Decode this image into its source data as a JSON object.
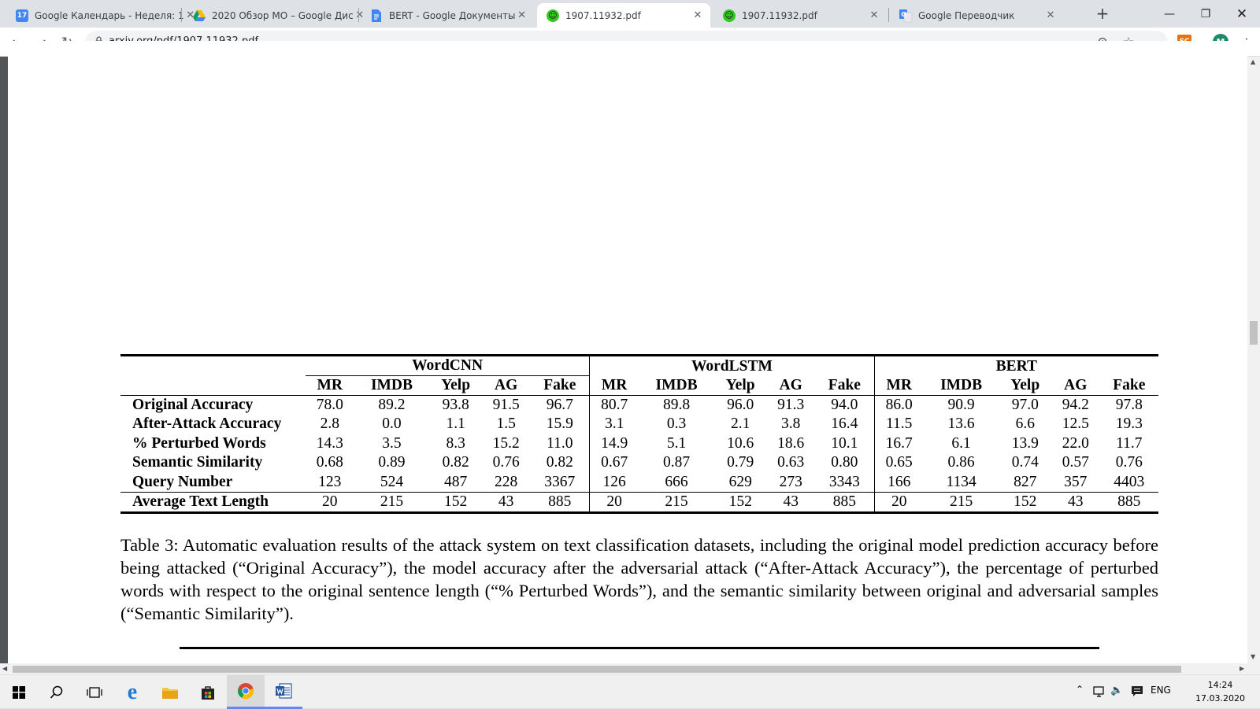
{
  "browser": {
    "tabs": [
      {
        "title": "Google Календарь - Неделя: 1",
        "favicon": "calendar-icon",
        "color": "#4285f4",
        "badge": "17"
      },
      {
        "title": "2020 Обзор МО – Google Дис",
        "favicon": "drive-icon",
        "color": "#fbbc04",
        "badge": ""
      },
      {
        "title": "BERT - Google Документы",
        "favicon": "docs-icon",
        "color": "#4285f4",
        "badge": ""
      },
      {
        "title": "1907.11932.pdf",
        "favicon": "smiley-icon",
        "color": "#34c724",
        "badge": ""
      },
      {
        "title": "1907.11932.pdf",
        "favicon": "smiley-icon",
        "color": "#34c724",
        "badge": ""
      },
      {
        "title": "Google Переводчик",
        "favicon": "translate-icon",
        "color": "#4285f4",
        "badge": ""
      }
    ],
    "active_tab": 3,
    "url": "arxiv.org/pdf/1907.11932.pdf",
    "profile_initial": "M",
    "extension_label": "SC"
  },
  "table": {
    "groups": [
      "WordCNN",
      "WordLSTM",
      "BERT"
    ],
    "datasets": [
      "MR",
      "IMDB",
      "Yelp",
      "AG",
      "Fake"
    ],
    "rows": [
      {
        "label": "Original Accuracy",
        "values": [
          "78.0",
          "89.2",
          "93.8",
          "91.5",
          "96.7",
          "80.7",
          "89.8",
          "96.0",
          "91.3",
          "94.0",
          "86.0",
          "90.9",
          "97.0",
          "94.2",
          "97.8"
        ]
      },
      {
        "label": "After-Attack Accuracy",
        "values": [
          "2.8",
          "0.0",
          "1.1",
          "1.5",
          "15.9",
          "3.1",
          "0.3",
          "2.1",
          "3.8",
          "16.4",
          "11.5",
          "13.6",
          "6.6",
          "12.5",
          "19.3"
        ]
      },
      {
        "label": "% Perturbed Words",
        "values": [
          "14.3",
          "3.5",
          "8.3",
          "15.2",
          "11.0",
          "14.9",
          "5.1",
          "10.6",
          "18.6",
          "10.1",
          "16.7",
          "6.1",
          "13.9",
          "22.0",
          "11.7"
        ]
      },
      {
        "label": "Semantic Similarity",
        "values": [
          "0.68",
          "0.89",
          "0.82",
          "0.76",
          "0.82",
          "0.67",
          "0.87",
          "0.79",
          "0.63",
          "0.80",
          "0.65",
          "0.86",
          "0.74",
          "0.57",
          "0.76"
        ]
      },
      {
        "label": "Query Number",
        "values": [
          "123",
          "524",
          "487",
          "228",
          "3367",
          "126",
          "666",
          "629",
          "273",
          "3343",
          "166",
          "1134",
          "827",
          "357",
          "4403"
        ]
      }
    ],
    "last_row": {
      "label": "Average Text Length",
      "values": [
        "20",
        "215",
        "152",
        "43",
        "885",
        "20",
        "215",
        "152",
        "43",
        "885",
        "20",
        "215",
        "152",
        "43",
        "885"
      ]
    }
  },
  "caption": "Table 3: Automatic evaluation results of the attack system on text classification datasets, including the original model prediction accuracy before being attacked (“Original Accuracy”), the model accuracy after the adversarial attack (“After-Attack Accuracy”), the percentage of perturbed words with respect to the original sentence length (“% Perturbed Words”), and the semantic similarity between original and adversarial samples (“Semantic Similarity”).",
  "taskbar": {
    "language": "ENG",
    "time": "14:24",
    "date": "17.03.2020"
  }
}
